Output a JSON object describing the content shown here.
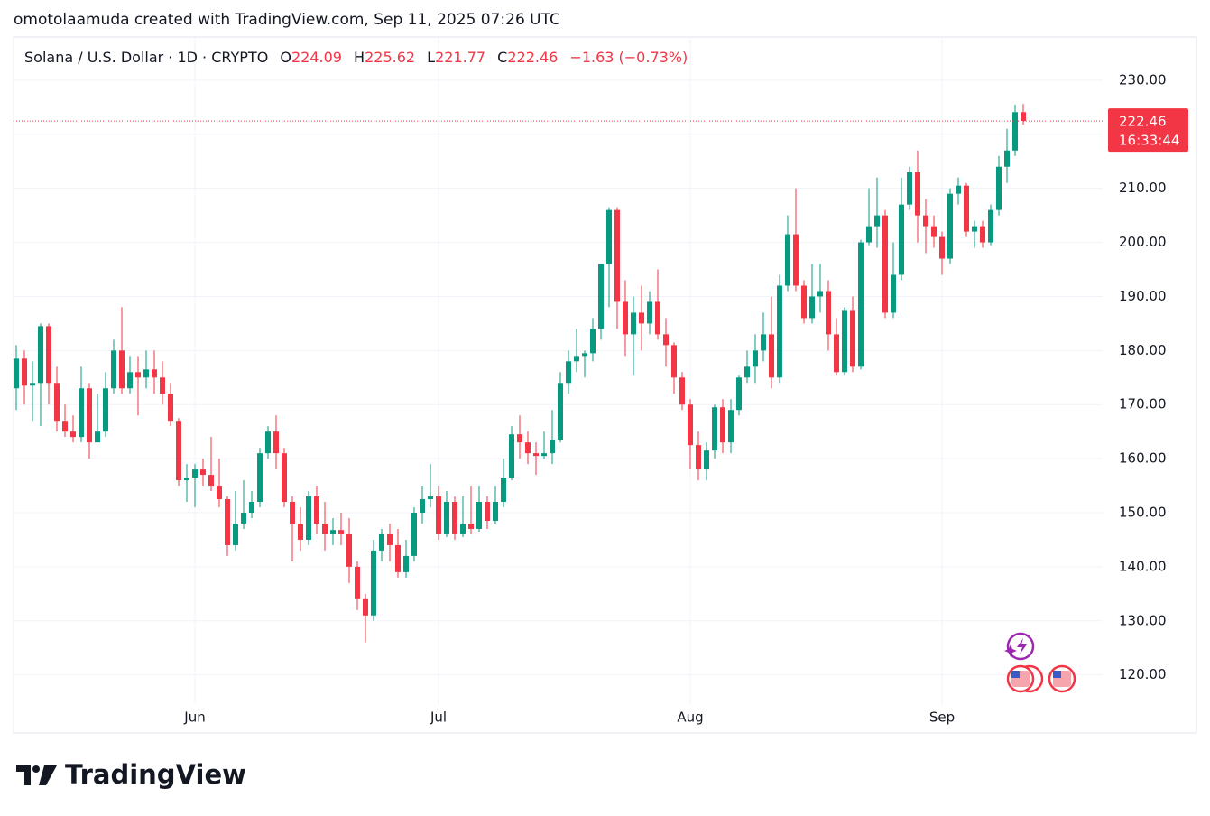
{
  "attribution": "omotolaamuda created with TradingView.com, Sep 11, 2025 07:26 UTC",
  "brand": "TradingView",
  "chart_data": {
    "type": "candlestick",
    "title": "Solana / U.S. Dollar · 1D · CRYPTO",
    "ohlc_labels": [
      "O",
      "H",
      "L",
      "C"
    ],
    "change": "−1.63 (−0.73%)",
    "countdown": "16:33:44",
    "up_color": "#089981",
    "down_color": "#f23645",
    "grid": true,
    "ylim": [
      114.6,
      238
    ],
    "yticks": [
      {
        "value": 120,
        "label": "120.00"
      },
      {
        "value": 130,
        "label": "130.00"
      },
      {
        "value": 140,
        "label": "140.00"
      },
      {
        "value": 150,
        "label": "150.00"
      },
      {
        "value": 160,
        "label": "160.00"
      },
      {
        "value": 170,
        "label": "170.00"
      },
      {
        "value": 180,
        "label": "180.00"
      },
      {
        "value": 190,
        "label": "190.00"
      },
      {
        "value": 200,
        "label": "200.00"
      },
      {
        "value": 210,
        "label": "210.00"
      },
      {
        "value": 220,
        "label": "220.00"
      },
      {
        "value": 230,
        "label": "230.00"
      }
    ],
    "categories": [
      null,
      null,
      null,
      null,
      null,
      null,
      null,
      null,
      null,
      null,
      null,
      null,
      null,
      null,
      null,
      null,
      null,
      null,
      null,
      null,
      null,
      null,
      "Jun",
      null,
      null,
      null,
      null,
      null,
      null,
      null,
      null,
      null,
      null,
      null,
      null,
      null,
      null,
      null,
      null,
      null,
      null,
      null,
      null,
      null,
      null,
      null,
      null,
      null,
      null,
      null,
      null,
      null,
      "Jul",
      null,
      null,
      null,
      null,
      null,
      null,
      null,
      null,
      null,
      null,
      null,
      null,
      null,
      null,
      null,
      null,
      null,
      null,
      null,
      null,
      null,
      null,
      null,
      null,
      null,
      null,
      null,
      null,
      null,
      null,
      "Aug",
      null,
      null,
      null,
      null,
      null,
      null,
      null,
      null,
      null,
      null,
      null,
      null,
      null,
      null,
      null,
      null,
      null,
      null,
      null,
      null,
      null,
      null,
      null,
      null,
      null,
      null,
      null,
      null,
      null,
      null,
      "Sep",
      null,
      null,
      null,
      null,
      null,
      null,
      null,
      null,
      null,
      null
    ],
    "open": [
      173,
      178.5,
      173.5,
      174,
      184.5,
      174,
      167,
      165,
      164,
      173,
      163,
      165,
      173,
      180,
      173,
      176,
      175,
      176.5,
      175,
      172,
      167,
      156,
      156.5,
      158,
      157,
      155,
      152.5,
      144,
      148,
      150,
      152,
      161,
      165,
      161,
      152,
      148,
      145,
      153,
      148,
      146,
      146.8,
      146,
      140,
      134,
      131,
      143,
      146,
      144,
      139,
      142,
      150,
      152.5,
      153,
      146,
      152,
      146,
      148,
      147,
      152,
      148.5,
      152,
      156.5,
      164.5,
      163,
      161,
      160.5,
      161,
      163.5,
      174,
      178,
      179,
      179.5,
      184,
      196,
      206,
      189,
      183,
      187,
      185,
      189,
      183,
      181,
      175,
      170,
      162.5,
      158,
      161.5,
      169.5,
      163,
      169,
      175,
      177,
      180,
      183,
      175,
      192,
      201.5,
      192,
      186,
      190,
      191,
      183,
      176,
      187.5,
      177,
      200,
      203,
      205,
      187,
      194,
      207,
      213,
      205,
      203,
      201,
      197,
      209,
      210.5,
      202,
      203,
      200,
      206,
      214,
      217,
      224.09
    ],
    "high": [
      181,
      180,
      178,
      185,
      185,
      177,
      170,
      168,
      177,
      174,
      172,
      176,
      182,
      188,
      179,
      179,
      180,
      180,
      178,
      174,
      167.5,
      159,
      159,
      160,
      164,
      160,
      153,
      154,
      156,
      154,
      162,
      166,
      168,
      162,
      153,
      151,
      154,
      155,
      152,
      149,
      150,
      149,
      141,
      135,
      145,
      147,
      148,
      147,
      145,
      151,
      155,
      159,
      155,
      154,
      153,
      153,
      155,
      155,
      153,
      155,
      160,
      166,
      168,
      165,
      163,
      165,
      169,
      176,
      180,
      184,
      180,
      186,
      196,
      206.5,
      206.5,
      193,
      190,
      192,
      191,
      195,
      186,
      181.5,
      176,
      171,
      165,
      163,
      170,
      171,
      171,
      175.5,
      180,
      183,
      187,
      190,
      194,
      205,
      210,
      193,
      196,
      196,
      193,
      186,
      188,
      190,
      200.5,
      210,
      212,
      206,
      200,
      212,
      214,
      217,
      208,
      205,
      202,
      210,
      212,
      211,
      204,
      204,
      207,
      216,
      221,
      225.5,
      225.62
    ],
    "low": [
      169,
      170,
      167,
      166,
      170,
      165,
      164,
      163,
      163,
      160,
      163,
      164,
      172,
      172,
      172,
      168,
      173,
      172,
      170,
      166,
      155,
      152,
      151,
      155,
      154,
      151,
      142,
      143,
      147,
      149,
      151,
      160,
      158,
      151,
      141,
      143,
      144,
      146,
      143,
      144,
      144,
      137,
      132,
      126,
      130,
      141,
      141,
      138,
      138,
      141,
      148,
      151,
      145,
      145.5,
      145,
      145.5,
      146,
      146.5,
      147,
      148,
      151,
      156,
      160,
      159,
      157,
      160,
      159,
      163,
      172,
      176,
      175,
      178,
      182,
      188,
      184,
      179,
      175.5,
      180,
      183,
      182,
      177,
      172,
      169,
      158,
      156,
      156,
      160,
      161,
      161,
      168,
      174,
      174,
      178,
      173,
      174,
      191,
      191,
      185,
      185,
      187,
      180,
      175.5,
      175.5,
      176,
      176.5,
      199.5,
      199,
      186,
      186,
      193,
      206,
      200,
      198,
      199,
      194,
      196,
      207,
      201,
      199,
      199,
      199.5,
      205,
      211,
      216,
      221.77
    ],
    "close": [
      178.5,
      173.5,
      174,
      184.5,
      174,
      167,
      165,
      164,
      173,
      163,
      165,
      173,
      180,
      173,
      176,
      175,
      176.5,
      175,
      172,
      167,
      156,
      156.5,
      158,
      157,
      155,
      152.5,
      144,
      148,
      150,
      152,
      161,
      165,
      161,
      152,
      148,
      145,
      153,
      148,
      146,
      146.8,
      146,
      140,
      134,
      131,
      143,
      146,
      144,
      139,
      142,
      150,
      152.5,
      153,
      146,
      152,
      146,
      148,
      147,
      152,
      148.5,
      152,
      156.5,
      164.5,
      163,
      161,
      160.5,
      161,
      163.5,
      174,
      178,
      179,
      179.5,
      184,
      196,
      206,
      189,
      183,
      187,
      185,
      189,
      183,
      181,
      175,
      170,
      162.5,
      158,
      161.5,
      169.5,
      163,
      169,
      175,
      177,
      180,
      183,
      175,
      192,
      201.5,
      192,
      186,
      190,
      191,
      183,
      176,
      187.5,
      177,
      200,
      203,
      205,
      187,
      194,
      207,
      213,
      205,
      203,
      201,
      197,
      209,
      210.5,
      202,
      203,
      200,
      206,
      214,
      217,
      224.09,
      222.46
    ]
  }
}
